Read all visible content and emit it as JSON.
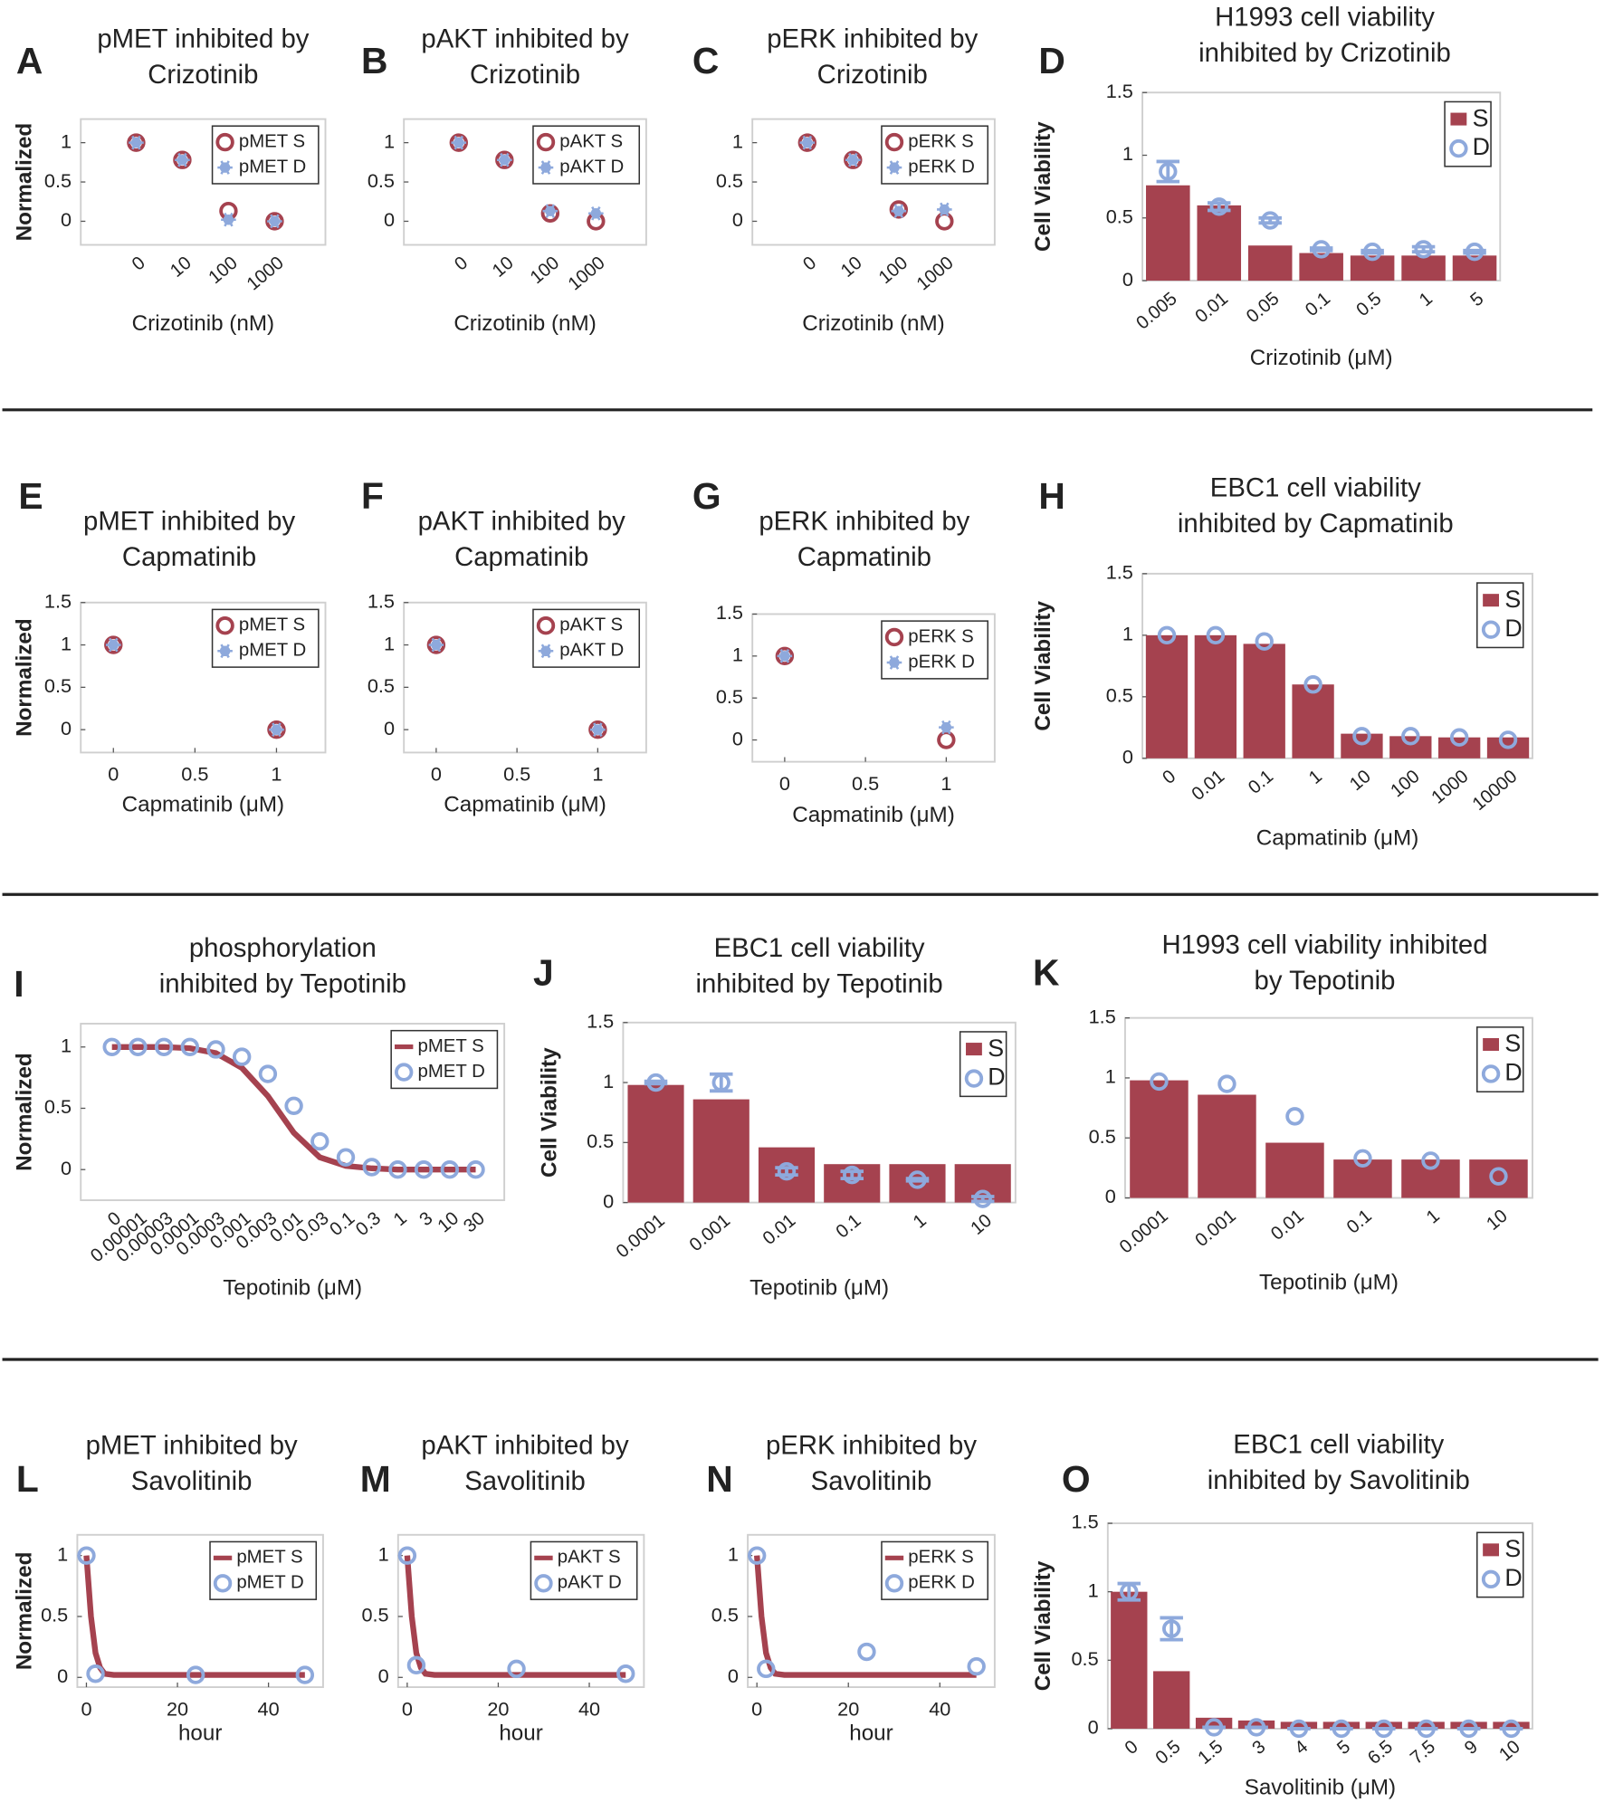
{
  "chart_data": [
    {
      "type": "scatter",
      "label": "A",
      "title": [
        "pMET inhibited by",
        "Crizotinib"
      ],
      "y_label": "Normalized",
      "x_label": "Crizotinib (nM)",
      "categories": [
        "0",
        "10",
        "100",
        "1000"
      ],
      "ylim": [
        -0.3,
        1.3
      ],
      "yticks": [
        0,
        0.5,
        1
      ],
      "series": [
        {
          "name": "pMET S",
          "style": "circle",
          "color": "#a5424f",
          "values": [
            1,
            0.78,
            0.13,
            0
          ]
        },
        {
          "name": "pMET D",
          "style": "star",
          "color": "#8ea9dc",
          "values": [
            1,
            0.78,
            0.02,
            0
          ]
        }
      ]
    },
    {
      "type": "scatter",
      "label": "B",
      "title": [
        "pAKT inhibited by",
        "Crizotinib"
      ],
      "x_label": "Crizotinib (nM)",
      "categories": [
        "0",
        "10",
        "100",
        "1000"
      ],
      "ylim": [
        -0.3,
        1.3
      ],
      "yticks": [
        0,
        0.5,
        1
      ],
      "series": [
        {
          "name": "pAKT S",
          "style": "circle",
          "color": "#a5424f",
          "values": [
            1,
            0.78,
            0.1,
            0
          ]
        },
        {
          "name": "pAKT D",
          "style": "star",
          "color": "#8ea9dc",
          "values": [
            1,
            0.78,
            0.13,
            0.1
          ]
        }
      ]
    },
    {
      "type": "scatter",
      "label": "C",
      "title": [
        "pERK inhibited by",
        "Crizotinib"
      ],
      "x_label": "Crizotinib (nM)",
      "categories": [
        "0",
        "10",
        "100",
        "1000"
      ],
      "ylim": [
        -0.3,
        1.3
      ],
      "yticks": [
        0,
        0.5,
        1
      ],
      "series": [
        {
          "name": "pERK S",
          "style": "circle",
          "color": "#a5424f",
          "values": [
            1,
            0.78,
            0.15,
            0
          ]
        },
        {
          "name": "pERK D",
          "style": "star",
          "color": "#8ea9dc",
          "values": [
            1,
            0.78,
            0.13,
            0.15
          ]
        }
      ]
    },
    {
      "type": "bar",
      "label": "D",
      "title": [
        "H1993 cell viability",
        "inhibited by Crizotinib"
      ],
      "y_label": "Cell Viability",
      "x_label": "Crizotinib (μM)",
      "categories": [
        "0.005",
        "0.01",
        "0.05",
        "0.1",
        "0.5",
        "1",
        "5"
      ],
      "ylim": [
        0,
        1.5
      ],
      "yticks": [
        0,
        0.5,
        1,
        1.5
      ],
      "series": [
        {
          "name": "S",
          "style": "bar",
          "color": "#a5424f",
          "values": [
            0.76,
            0.6,
            0.28,
            0.22,
            0.2,
            0.2,
            0.2
          ]
        },
        {
          "name": "D",
          "style": "circle",
          "color": "#8ea9dc",
          "values": [
            0.87,
            0.59,
            0.48,
            0.25,
            0.23,
            0.25,
            0.23
          ],
          "errors": [
            0.08,
            0.03,
            0.02,
            0.01,
            0.01,
            0.02,
            0.01
          ]
        }
      ]
    },
    {
      "type": "scatter",
      "label": "E",
      "title": [
        "pMET inhibited by",
        "Capmatinib"
      ],
      "y_label": "Normalized",
      "x_label": "Capmatinib (μM)",
      "xlim": [
        -0.2,
        1.3
      ],
      "xticks": [
        0,
        0.5,
        1
      ],
      "ylim": [
        -0.27,
        1.5
      ],
      "yticks": [
        0,
        0.5,
        1,
        1.5
      ],
      "series": [
        {
          "name": "pMET S",
          "style": "circle",
          "color": "#a5424f",
          "x": [
            0,
            1
          ],
          "values": [
            1,
            0
          ]
        },
        {
          "name": "pMET D",
          "style": "star",
          "color": "#8ea9dc",
          "x": [
            0,
            1
          ],
          "values": [
            1,
            0
          ]
        }
      ]
    },
    {
      "type": "scatter",
      "label": "F",
      "title": [
        "pAKT inhibited by",
        "Capmatinib"
      ],
      "x_label": "Capmatinib (μM)",
      "xlim": [
        -0.2,
        1.3
      ],
      "xticks": [
        0,
        0.5,
        1
      ],
      "ylim": [
        -0.27,
        1.5
      ],
      "yticks": [
        0,
        0.5,
        1,
        1.5
      ],
      "series": [
        {
          "name": "pAKT S",
          "style": "circle",
          "color": "#a5424f",
          "x": [
            0,
            1
          ],
          "values": [
            1,
            0
          ]
        },
        {
          "name": "pAKT D",
          "style": "star",
          "color": "#8ea9dc",
          "x": [
            0,
            1
          ],
          "values": [
            1,
            0
          ]
        }
      ]
    },
    {
      "type": "scatter",
      "label": "G",
      "title": [
        "pERK inhibited by",
        "Capmatinib"
      ],
      "x_label": "Capmatinib (μM)",
      "xlim": [
        -0.2,
        1.3
      ],
      "xticks": [
        0,
        0.5,
        1
      ],
      "ylim": [
        -0.26,
        1.5
      ],
      "yticks": [
        0,
        0.5,
        1,
        1.5
      ],
      "series": [
        {
          "name": "pERK S",
          "style": "circle",
          "color": "#a5424f",
          "x": [
            0,
            1
          ],
          "values": [
            1,
            0
          ]
        },
        {
          "name": "pERK D",
          "style": "star",
          "color": "#8ea9dc",
          "x": [
            0,
            1
          ],
          "values": [
            1,
            0.15
          ]
        }
      ]
    },
    {
      "type": "bar",
      "label": "H",
      "title": [
        "EBC1 cell viability",
        "inhibited by Capmatinib"
      ],
      "y_label": "Cell Viability",
      "x_label": "Capmatinib (μM)",
      "categories": [
        "0",
        "0.01",
        "0.1",
        "1",
        "10",
        "100",
        "1000",
        "10000"
      ],
      "ylim": [
        0,
        1.5
      ],
      "yticks": [
        0,
        0.5,
        1,
        1.5
      ],
      "series": [
        {
          "name": "S",
          "style": "bar",
          "color": "#a5424f",
          "values": [
            1,
            1,
            0.93,
            0.6,
            0.2,
            0.18,
            0.17,
            0.17
          ]
        },
        {
          "name": "D",
          "style": "circle",
          "color": "#8ea9dc",
          "values": [
            1,
            1,
            0.95,
            0.6,
            0.18,
            0.18,
            0.17,
            0.15
          ]
        }
      ]
    },
    {
      "type": "line",
      "label": "I",
      "title": [
        "phosphorylation",
        "inhibited by Tepotinib"
      ],
      "y_label": "Normalized",
      "x_label": "Tepotinib (μM)",
      "categories": [
        "0",
        "0.00001",
        "0.00003",
        "0.0001",
        "0.0003",
        "0.001",
        "0.003",
        "0.01",
        "0.03",
        "0.1",
        "0.3",
        "1",
        "3",
        "10",
        "30"
      ],
      "ylim": [
        -0.25,
        1.19
      ],
      "yticks": [
        0,
        0.5,
        1
      ],
      "series": [
        {
          "name": "pMET S",
          "style": "line",
          "color": "#a5424f",
          "values": [
            1,
            1,
            1,
            0.99,
            0.95,
            0.83,
            0.6,
            0.3,
            0.1,
            0.03,
            0.01,
            0,
            0,
            0,
            0
          ]
        },
        {
          "name": "pMET D",
          "style": "circle",
          "color": "#8ea9dc",
          "values": [
            1,
            1,
            1,
            1,
            0.98,
            0.92,
            0.78,
            0.52,
            0.23,
            0.1,
            0.02,
            0,
            0,
            0,
            0
          ]
        }
      ]
    },
    {
      "type": "bar",
      "label": "J",
      "title": [
        "EBC1 cell viability",
        "inhibited by Tepotinib"
      ],
      "y_label": "Cell Viability",
      "x_label": "Tepotinib (μM)",
      "categories": [
        "0.0001",
        "0.001",
        "0.01",
        "0.1",
        "1",
        "10"
      ],
      "ylim": [
        0,
        1.5
      ],
      "yticks": [
        0,
        0.5,
        1,
        1.5
      ],
      "series": [
        {
          "name": "S",
          "style": "bar",
          "color": "#a5424f",
          "values": [
            0.98,
            0.86,
            0.46,
            0.32,
            0.32,
            0.32
          ]
        },
        {
          "name": "D",
          "style": "circle",
          "color": "#8ea9dc",
          "values": [
            1,
            1,
            0.26,
            0.23,
            0.19,
            0.03
          ],
          "errors": [
            0.01,
            0.07,
            0.03,
            0.03,
            0.01,
            0.02
          ]
        }
      ]
    },
    {
      "type": "bar",
      "label": "K",
      "title": [
        "H1993 cell viability inhibited",
        "by Tepotinib"
      ],
      "x_label": "Tepotinib (μM)",
      "categories": [
        "0.0001",
        "0.001",
        "0.01",
        "0.1",
        "1",
        "10"
      ],
      "ylim": [
        0,
        1.5
      ],
      "yticks": [
        0,
        0.5,
        1,
        1.5
      ],
      "series": [
        {
          "name": "S",
          "style": "bar",
          "color": "#a5424f",
          "values": [
            0.98,
            0.86,
            0.46,
            0.32,
            0.32,
            0.32
          ]
        },
        {
          "name": "D",
          "style": "circle",
          "color": "#8ea9dc",
          "values": [
            0.97,
            0.95,
            0.68,
            0.33,
            0.31,
            0.18
          ]
        }
      ]
    },
    {
      "type": "line",
      "label": "L",
      "title": [
        "pMET inhibited by",
        "Savolitinib"
      ],
      "y_label": "Normalized",
      "x_label": "hour",
      "xlim": [
        -2,
        52
      ],
      "xticks": [
        0,
        20,
        40
      ],
      "ylim": [
        -0.08,
        1.17
      ],
      "yticks": [
        0,
        0.5,
        1
      ],
      "series": [
        {
          "name": "pMET S",
          "style": "line",
          "color": "#a5424f",
          "x": [
            0,
            1,
            2,
            3,
            4,
            6,
            10,
            24,
            48
          ],
          "values": [
            1,
            0.5,
            0.2,
            0.08,
            0.03,
            0.02,
            0.02,
            0.02,
            0.02
          ]
        },
        {
          "name": "pMET D",
          "style": "circle",
          "color": "#8ea9dc",
          "x": [
            0,
            2,
            24,
            48
          ],
          "values": [
            1,
            0.03,
            0.02,
            0.02
          ]
        }
      ]
    },
    {
      "type": "line",
      "label": "M",
      "title": [
        "pAKT inhibited by",
        "Savolitinib"
      ],
      "x_label": "hour",
      "xlim": [
        -2,
        52
      ],
      "xticks": [
        0,
        20,
        40
      ],
      "ylim": [
        -0.08,
        1.17
      ],
      "yticks": [
        0,
        0.5,
        1
      ],
      "series": [
        {
          "name": "pAKT S",
          "style": "line",
          "color": "#a5424f",
          "x": [
            0,
            1,
            2,
            3,
            4,
            6,
            10,
            24,
            48
          ],
          "values": [
            1,
            0.5,
            0.2,
            0.08,
            0.03,
            0.02,
            0.02,
            0.02,
            0.02
          ]
        },
        {
          "name": "pAKT D",
          "style": "circle",
          "color": "#8ea9dc",
          "x": [
            0,
            2,
            24,
            48
          ],
          "values": [
            1,
            0.1,
            0.07,
            0.03
          ]
        }
      ]
    },
    {
      "type": "line",
      "label": "N",
      "title": [
        "pERK inhibited by",
        "Savolitinib"
      ],
      "x_label": "hour",
      "xlim": [
        -2,
        52
      ],
      "xticks": [
        0,
        20,
        40
      ],
      "ylim": [
        -0.08,
        1.17
      ],
      "yticks": [
        0,
        0.5,
        1
      ],
      "series": [
        {
          "name": "pERK S",
          "style": "line",
          "color": "#a5424f",
          "x": [
            0,
            1,
            2,
            3,
            4,
            6,
            10,
            24,
            48
          ],
          "values": [
            1,
            0.5,
            0.2,
            0.08,
            0.03,
            0.02,
            0.02,
            0.02,
            0.02
          ]
        },
        {
          "name": "pERK D",
          "style": "circle",
          "color": "#8ea9dc",
          "x": [
            0,
            2,
            24,
            48
          ],
          "values": [
            1,
            0.07,
            0.21,
            0.09
          ]
        }
      ]
    },
    {
      "type": "bar",
      "label": "O",
      "title": [
        "EBC1 cell viability",
        "inhibited by Savolitinib"
      ],
      "y_label": "Cell Viability",
      "x_label": "Savolitinib (μM)",
      "categories": [
        "0",
        "0.5",
        "1.5",
        "3",
        "4",
        "5",
        "6.5",
        "7.5",
        "9",
        "10"
      ],
      "ylim": [
        0,
        1.5
      ],
      "yticks": [
        0,
        0.5,
        1,
        1.5
      ],
      "series": [
        {
          "name": "S",
          "style": "bar",
          "color": "#a5424f",
          "values": [
            1,
            0.42,
            0.08,
            0.06,
            0.05,
            0.05,
            0.05,
            0.05,
            0.05,
            0.05
          ]
        },
        {
          "name": "D",
          "style": "circle",
          "color": "#8ea9dc",
          "values": [
            1,
            0.73,
            0.01,
            0.01,
            0,
            0,
            0,
            0,
            0,
            0
          ],
          "errors": [
            0.06,
            0.08,
            0,
            0,
            0,
            0,
            0,
            0,
            0,
            0
          ]
        }
      ]
    }
  ]
}
